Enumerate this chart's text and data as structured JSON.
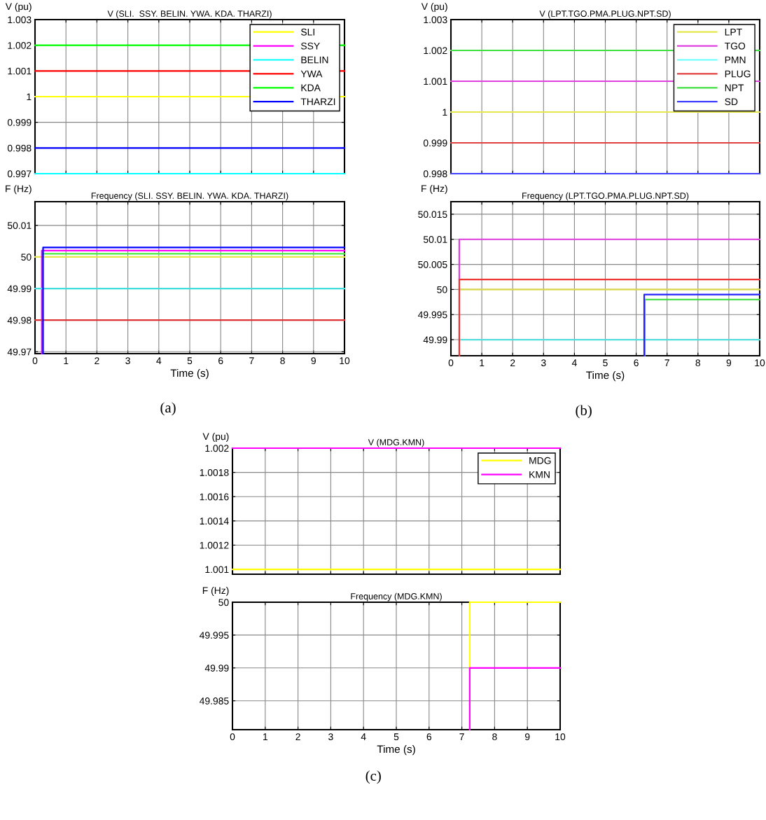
{
  "chart_data": [
    {
      "type": "line",
      "title": "V (SLI.  SSY. BELIN. YWA. KDA. THARZI)",
      "ylabel": "V (pu)",
      "xlim": [
        0,
        10
      ],
      "xticks": [
        0,
        1,
        2,
        3,
        4,
        5,
        6,
        7,
        8,
        9,
        10
      ],
      "ylim": [
        0.997,
        1.003
      ],
      "yticks": [
        0.997,
        0.998,
        0.999,
        1,
        1.001,
        1.002,
        1.003
      ],
      "tick_labels": "y",
      "grid": true,
      "legend": "top right",
      "series": [
        {
          "name": "SLI",
          "color": "#ffff00",
          "x": [
            0,
            10
          ],
          "values": [
            1,
            1
          ]
        },
        {
          "name": "SSY",
          "color": "#ff00ff",
          "values": [
            null,
            null
          ]
        },
        {
          "name": "BELIN",
          "color": "#00ffff",
          "x": [
            0,
            10
          ],
          "values": [
            0.997,
            0.997
          ]
        },
        {
          "name": "YWA",
          "color": "#ff0000",
          "x": [
            0,
            10
          ],
          "values": [
            1.001,
            1.001
          ]
        },
        {
          "name": "KDA",
          "color": "#00ff00",
          "x": [
            0,
            10
          ],
          "values": [
            1.002,
            1.002
          ]
        },
        {
          "name": "THARZI",
          "color": "#0000ff",
          "x": [
            0,
            10
          ],
          "values": [
            0.998,
            0.998
          ]
        }
      ]
    },
    {
      "type": "line",
      "title": "V (LPT.TGO.PMA.PLUG.NPT.SD)",
      "ylabel": "V (pu)",
      "xlim": [
        0,
        10
      ],
      "xticks": [
        0,
        1,
        2,
        3,
        4,
        5,
        6,
        7,
        8,
        9,
        10
      ],
      "ylim": [
        0.998,
        1.003
      ],
      "yticks": [
        0.998,
        0.999,
        1,
        1.001,
        1.002,
        1.003
      ],
      "tick_labels": "y",
      "grid": true,
      "legend": "top right",
      "series": [
        {
          "name": "LPT",
          "color": "#e6e64d",
          "x": [
            0,
            10
          ],
          "values": [
            1,
            1
          ]
        },
        {
          "name": "TGO",
          "color": "#e040e0",
          "x": [
            0,
            10
          ],
          "values": [
            1.001,
            1.001
          ]
        },
        {
          "name": "PMN",
          "color": "#66ffff",
          "values": [
            null,
            null
          ]
        },
        {
          "name": "PLUG",
          "color": "#e04040",
          "x": [
            0,
            10
          ],
          "values": [
            0.999,
            0.999
          ]
        },
        {
          "name": "NPT",
          "color": "#40e040",
          "x": [
            0,
            10
          ],
          "values": [
            1.002,
            1.002
          ]
        },
        {
          "name": "SD",
          "color": "#4040ff",
          "x": [
            0,
            10
          ],
          "values": [
            0.998,
            0.998
          ]
        }
      ]
    },
    {
      "type": "line",
      "title": "Frequency (SLI. SSY. BELIN. YWA. KDA. THARZI)",
      "ylabel": "F (Hz)",
      "xlabel": "Time (s)",
      "xlim": [
        0,
        10
      ],
      "xticks": [
        0,
        1,
        2,
        3,
        4,
        5,
        6,
        7,
        8,
        9,
        10
      ],
      "ylim": [
        49.9694,
        50.0175
      ],
      "yticks": [
        49.97,
        49.98,
        49.99,
        50,
        50.01
      ],
      "grid": true,
      "annotations": [
        "(a)"
      ],
      "series": [
        {
          "color": "#e6e64d",
          "x": [
            0,
            10
          ],
          "values": [
            50,
            50
          ]
        },
        {
          "color": "#ff00ff",
          "x": [
            0.22,
            0.22,
            10
          ],
          "values": [
            49.9694,
            50.002,
            50.002
          ]
        },
        {
          "color": "#44dddd",
          "x": [
            0,
            10
          ],
          "values": [
            49.99,
            49.99
          ]
        },
        {
          "color": "#dd3333",
          "x": [
            0,
            10
          ],
          "values": [
            49.98,
            49.98
          ]
        },
        {
          "color": "#44ee44",
          "x": [
            0.26,
            10
          ],
          "values": [
            50.001,
            50.001
          ]
        },
        {
          "color": "#0000ff",
          "x": [
            0.26,
            0.26,
            10
          ],
          "values": [
            49.9694,
            50.003,
            50.003
          ]
        }
      ]
    },
    {
      "type": "line",
      "title": "Frequency (LPT.TGO.PMA.PLUG.NPT.SD)",
      "ylabel": "F (Hz)",
      "xlabel": "Time (s)",
      "xlim": [
        0,
        10
      ],
      "xticks": [
        0,
        1,
        2,
        3,
        4,
        5,
        6,
        7,
        8,
        9,
        10
      ],
      "ylim": [
        49.9868,
        50.0175
      ],
      "yticks": [
        49.99,
        49.995,
        50,
        50.005,
        50.01,
        50.015
      ],
      "grid": true,
      "annotations": [
        "(b)"
      ],
      "series": [
        {
          "color": "#d8d84a",
          "x": [
            0.27,
            10
          ],
          "values": [
            50,
            50
          ]
        },
        {
          "color": "#e040e0",
          "x": [
            0.27,
            0.27,
            10
          ],
          "values": [
            50.002,
            50.01,
            50.01
          ]
        },
        {
          "color": "#55dddd",
          "x": [
            0.27,
            10
          ],
          "values": [
            49.99,
            49.99
          ]
        },
        {
          "color": "#ee3333",
          "x": [
            0.27,
            0.27,
            10
          ],
          "values": [
            49.9868,
            50.002,
            50.002
          ]
        },
        {
          "color": "#33dd33",
          "x": [
            6.28,
            6.28,
            10
          ],
          "values": [
            49.9868,
            49.998,
            49.998
          ]
        },
        {
          "color": "#2222ff",
          "x": [
            6.26,
            6.26,
            10
          ],
          "values": [
            49.9868,
            49.999,
            49.999
          ]
        }
      ]
    },
    {
      "type": "line",
      "title": "V (MDG.KMN)",
      "ylabel": "V (pu)",
      "xlim": [
        0,
        10
      ],
      "xticks": [
        0,
        1,
        2,
        3,
        4,
        5,
        6,
        7,
        8,
        9,
        10
      ],
      "ylim": [
        1.00096,
        1.002
      ],
      "yticks": [
        1.001,
        1.0012,
        1.0014,
        1.0016,
        1.0018,
        1.002
      ],
      "tick_labels": "y",
      "grid": true,
      "legend": "top right",
      "series": [
        {
          "name": "MDG",
          "color": "#ffff00",
          "x": [
            0,
            10
          ],
          "values": [
            1.001,
            1.001
          ]
        },
        {
          "name": "KMN",
          "color": "#ff00ff",
          "x": [
            0,
            10
          ],
          "values": [
            1.002,
            1.002
          ]
        }
      ]
    },
    {
      "type": "line",
      "title": "Frequency (MDG.KMN)",
      "ylabel": "F (Hz)",
      "xlabel": "Time (s)",
      "xlim": [
        0,
        10
      ],
      "xticks": [
        0,
        1,
        2,
        3,
        4,
        5,
        6,
        7,
        8,
        9,
        10
      ],
      "ylim": [
        49.9806,
        50
      ],
      "yticks": [
        49.985,
        49.99,
        49.995,
        50
      ],
      "grid": true,
      "annotations": [
        "(c)"
      ],
      "series": [
        {
          "color": "#ffff00",
          "x": [
            7.24,
            7.24,
            10
          ],
          "values": [
            49.99,
            50,
            50
          ]
        },
        {
          "color": "#ff00ff",
          "x": [
            7.24,
            7.24,
            10
          ],
          "values": [
            49.9806,
            49.99,
            49.99
          ]
        }
      ]
    }
  ]
}
